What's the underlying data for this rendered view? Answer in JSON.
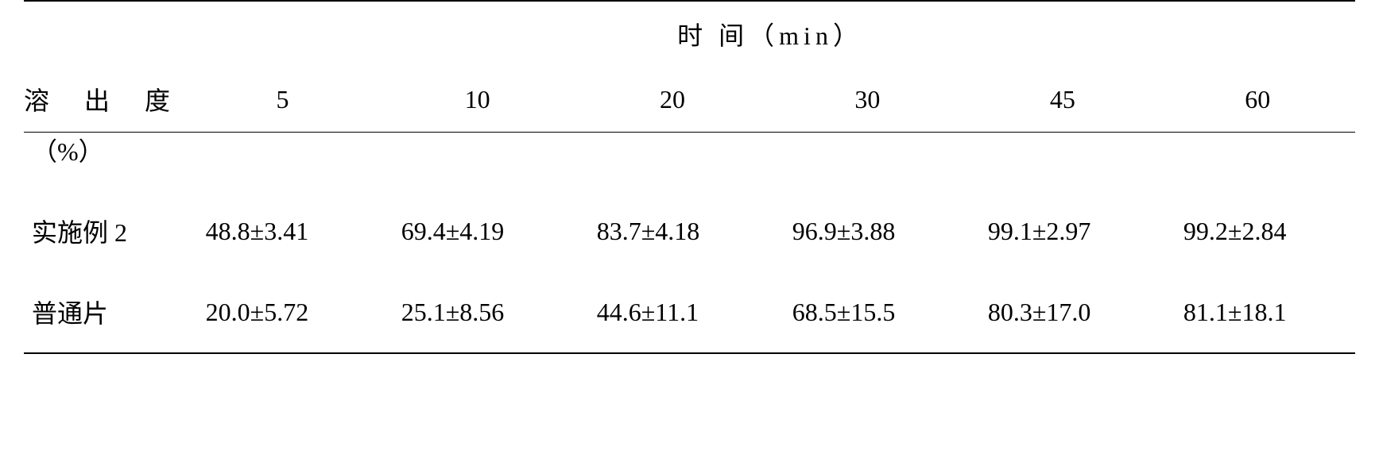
{
  "table": {
    "header_title": "时 间（min）",
    "row_header_label_line1": "溶 出 度",
    "row_header_label_line2": "（%）",
    "time_points": [
      "5",
      "10",
      "20",
      "30",
      "45",
      "60"
    ],
    "rows": [
      {
        "label": "实施例 2",
        "values": [
          "48.8±3.41",
          "69.4±4.19",
          "83.7±4.18",
          "96.9±3.88",
          "99.1±2.97",
          "99.2±2.84"
        ]
      },
      {
        "label": "普通片",
        "values": [
          "20.0±5.72",
          "25.1±8.56",
          "44.6±11.1",
          "68.5±15.5",
          "80.3±17.0",
          "81.1±18.1"
        ]
      }
    ],
    "colors": {
      "background": "#ffffff",
      "text": "#000000",
      "border": "#000000"
    },
    "font_sizes": {
      "body": 32
    }
  }
}
